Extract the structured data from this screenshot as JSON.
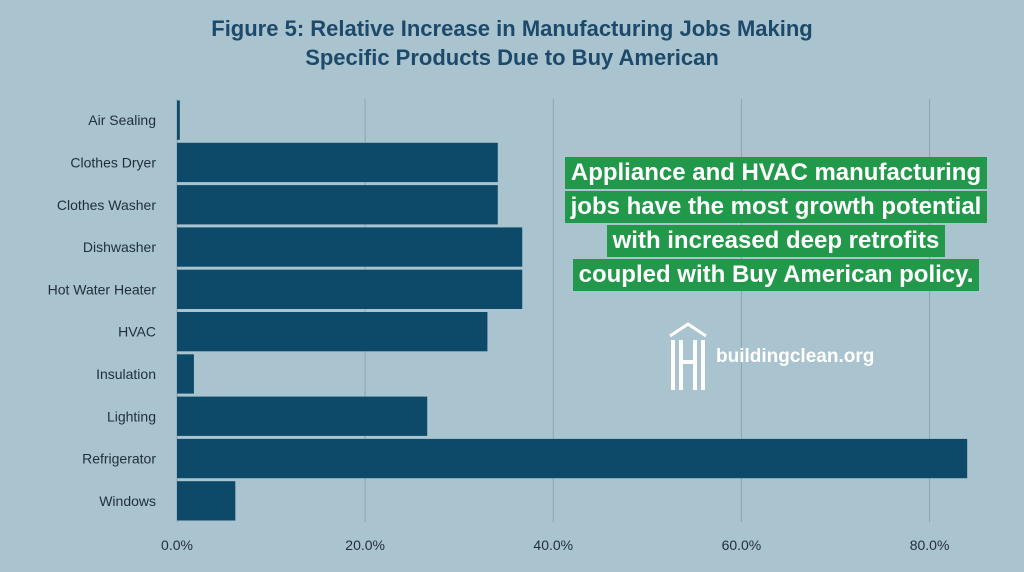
{
  "title_lines": [
    "Figure 5: Relative Increase in Manufacturing Jobs Making",
    "Specific Products Due to Buy American"
  ],
  "callout_lines": [
    "Appliance and HVAC manufacturing",
    "jobs have the most growth potential",
    "with increased deep retrofits",
    "coupled with Buy American policy."
  ],
  "logo_text": "buildingclean.org",
  "colors": {
    "background": "#a9c3cf",
    "bar": "#0d4a6a",
    "title": "#1d4a6a",
    "callout": "#22994a",
    "grid": "#8ba5b2"
  },
  "chart_data": {
    "type": "bar",
    "orientation": "horizontal",
    "title": "Figure 5: Relative Increase in Manufacturing Jobs Making Specific Products Due to Buy American",
    "categories": [
      "Air Sealing",
      "Clothes Dryer",
      "Clothes Washer",
      "Dishwasher",
      "Hot Water Heater",
      "HVAC",
      "Insulation",
      "Lighting",
      "Refrigerator",
      "Windows"
    ],
    "values": [
      0.3,
      34.1,
      34.1,
      36.7,
      36.7,
      33.0,
      1.8,
      26.6,
      84.0,
      6.2
    ],
    "value_unit": "%",
    "xlim": [
      0,
      86
    ],
    "xticks": [
      0,
      20,
      40,
      60,
      80
    ],
    "xtick_labels": [
      "0.0%",
      "20.0%",
      "40.0%",
      "60.0%",
      "80.0%"
    ],
    "grid": "vertical",
    "legend": "none"
  }
}
